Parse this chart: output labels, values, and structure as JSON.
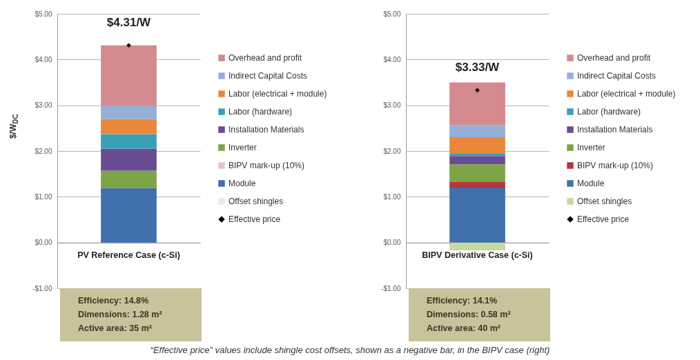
{
  "chart_data": [
    {
      "type": "bar",
      "stacked": true,
      "ylabel": "$/W$_{DC}$",
      "categories": [
        "PV Reference Case (c-Si)"
      ],
      "ylim": [
        -1,
        5
      ],
      "yticks": [
        {
          "value": -1,
          "label": "-$1.00"
        },
        {
          "value": 0,
          "label": "$0.00"
        },
        {
          "value": 1,
          "label": "$1.00"
        },
        {
          "value": 2,
          "label": "$2.00"
        },
        {
          "value": 3,
          "label": "$3.00"
        },
        {
          "value": 4,
          "label": "$4.00"
        },
        {
          "value": 5,
          "label": "$5.00"
        }
      ],
      "grid": "y",
      "legend": "right",
      "series": [
        {
          "name": "Offset shingles",
          "color": "#e9ece2",
          "values": [
            null
          ]
        },
        {
          "name": "Module",
          "color": "#3f6fad",
          "values": [
            1.19
          ]
        },
        {
          "name": "BIPV mark-up (10%)",
          "color": "#e6c3c6",
          "values": [
            null
          ]
        },
        {
          "name": "Inverter",
          "color": "#7ea545",
          "values": [
            0.38
          ]
        },
        {
          "name": "Installation Materials",
          "color": "#6a4c93",
          "values": [
            0.48
          ]
        },
        {
          "name": "Labor (hardware)",
          "color": "#3aa0b8",
          "values": [
            0.32
          ]
        },
        {
          "name": "Labor (electrical + module)",
          "color": "#e9873a",
          "values": [
            0.33
          ]
        },
        {
          "name": "Indirect Capital Costs",
          "color": "#95b0d8",
          "values": [
            0.29
          ]
        },
        {
          "name": "Overhead and profit",
          "color": "#d48a8e",
          "values": [
            1.32
          ]
        },
        {
          "name": "Effective price",
          "type": "scatter",
          "marker": "diamond",
          "color": "#000000",
          "values": [
            4.31
          ],
          "value_labels": [
            "$4.31/W"
          ]
        }
      ],
      "annotations": [
        "Efficiency:  14.8%",
        "Dimensions:  1.28 m²",
        "Active area:  35 m²"
      ]
    },
    {
      "type": "bar",
      "stacked": true,
      "categories": [
        "BIPV Derivative Case (c-Si)"
      ],
      "ylim": [
        -1,
        5
      ],
      "yticks": [
        {
          "value": -1,
          "label": "-$1.00"
        },
        {
          "value": 0,
          "label": "$0.00"
        },
        {
          "value": 1,
          "label": "$1.00"
        },
        {
          "value": 2,
          "label": "$2.00"
        },
        {
          "value": 3,
          "label": "$3.00"
        },
        {
          "value": 4,
          "label": "$4.00"
        },
        {
          "value": 5,
          "label": "$5.00"
        }
      ],
      "grid": "y",
      "legend": "right",
      "series": [
        {
          "name": "Offset shingles",
          "color": "#c5d9a0",
          "values": [
            -0.17
          ]
        },
        {
          "name": "Module",
          "color": "#3f6fad",
          "values": [
            1.2
          ]
        },
        {
          "name": "BIPV mark-up (10%)",
          "color": "#b5373d",
          "values": [
            0.12
          ]
        },
        {
          "name": "Inverter",
          "color": "#7ea545",
          "values": [
            0.39
          ]
        },
        {
          "name": "Installation Materials",
          "color": "#6a4c93",
          "values": [
            0.18
          ]
        },
        {
          "name": "Labor (hardware)",
          "color": "#3aa0b8",
          "values": [
            0.05
          ]
        },
        {
          "name": "Labor (electrical + module)",
          "color": "#e9873a",
          "values": [
            0.36
          ]
        },
        {
          "name": "Indirect Capital Costs",
          "color": "#95b0d8",
          "values": [
            0.27
          ]
        },
        {
          "name": "Overhead and profit",
          "color": "#d48a8e",
          "values": [
            0.93
          ]
        },
        {
          "name": "Effective price",
          "type": "scatter",
          "marker": "diamond",
          "color": "#000000",
          "values": [
            3.33
          ],
          "value_labels": [
            "$3.33/W"
          ]
        }
      ],
      "annotations": [
        "Efficiency:  14.1%",
        "Dimensions:  0.58 m²",
        "Active area:  40 m²",
        "“Effective price” values include shingle cost offsets, shown as a negative bar, in the BIPV case (right)"
      ]
    }
  ]
}
